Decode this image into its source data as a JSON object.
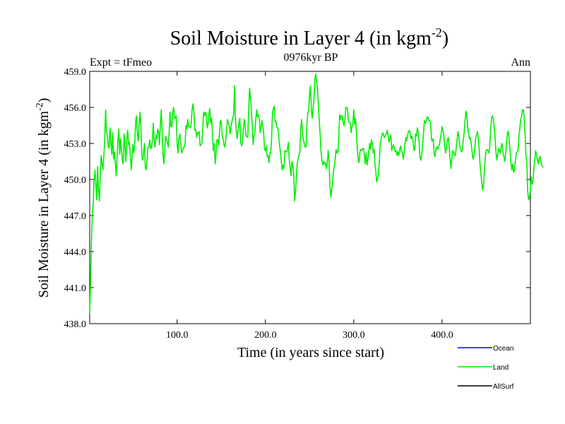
{
  "chart_data": {
    "type": "line",
    "title": "Soil Moisture in Layer 4 (in kgm",
    "title_sup": "-2",
    "title_close": ")",
    "subtitle_left": "Expt = tFmeo",
    "subtitle_center": "0976kyr BP",
    "subtitle_right": "Ann",
    "xlabel": "Time (in years since start)",
    "ylabel": "Soil Moisture in Layer 4 (in kgm",
    "ylabel_sup": "-2",
    "ylabel_close": ")",
    "xlim": [
      1,
      500
    ],
    "ylim": [
      438.0,
      459.0
    ],
    "x_ticks": [
      100,
      200,
      300,
      400
    ],
    "x_tick_labels": [
      "100.0",
      "200.0",
      "300.0",
      "400.0"
    ],
    "y_ticks": [
      438,
      441,
      444,
      447,
      450,
      453,
      456,
      459
    ],
    "y_tick_labels": [
      "438.0",
      "441.0",
      "444.0",
      "447.0",
      "450.0",
      "453.0",
      "456.0",
      "459.0"
    ],
    "legend": [
      {
        "name": "Ocean",
        "color": "#0000ff"
      },
      {
        "name": "Land",
        "color": "#00ee00"
      },
      {
        "name": "AllSurf",
        "color": "#000000"
      }
    ],
    "series": [
      {
        "name": "Land",
        "color": "#00ee00",
        "x_start": 1,
        "x_step": 1,
        "values": [
          438.8,
          441.5,
          444.8,
          447.2,
          448.0,
          450.0,
          450.8,
          449.5,
          448.3,
          451.1,
          449.0,
          448.2,
          450.5,
          452.0,
          451.3,
          450.8,
          451.9,
          453.3,
          455.8,
          454.0,
          453.6,
          452.8,
          452.6,
          454.3,
          453.1,
          452.1,
          453.9,
          451.7,
          452.3,
          451.4,
          450.3,
          451.8,
          453.3,
          454.2,
          452.1,
          453.4,
          452.5,
          451.6,
          451.3,
          453.8,
          452.7,
          451.5,
          453.4,
          454.1,
          452.9,
          453.1,
          452.0,
          450.8,
          451.9,
          452.9,
          452.2,
          453.1,
          454.8,
          455.3,
          453.8,
          453.2,
          454.6,
          455.6,
          454.4,
          452.0,
          451.6,
          452.3,
          453.0,
          451.0,
          450.8,
          451.7,
          452.7,
          452.7,
          453.3,
          452.6,
          452.6,
          453.3,
          454.7,
          453.2,
          452.7,
          453.7,
          453.4,
          454.2,
          454.0,
          452.9,
          454.6,
          455.8,
          454.0,
          452.1,
          451.3,
          452.5,
          453.6,
          453.4,
          453.1,
          452.7,
          454.0,
          455.6,
          454.4,
          454.4,
          455.6,
          456.0,
          455.1,
          455.1,
          455.3,
          453.0,
          452.2,
          453.4,
          453.8,
          453.1,
          452.2,
          452.5,
          452.6,
          452.7,
          452.9,
          454.5,
          454.2,
          455.0,
          454.4,
          454.4,
          454.3,
          454.7,
          455.9,
          456.3,
          455.6,
          454.1,
          454.2,
          453.5,
          453.9,
          453.8,
          454.0,
          452.8,
          452.9,
          453.0,
          454.3,
          455.6,
          455.3,
          455.6,
          455.4,
          454.3,
          454.6,
          455.5,
          455.9,
          454.7,
          455.1,
          453.8,
          452.4,
          453.0,
          451.3,
          452.1,
          453.3,
          453.3,
          452.8,
          454.0,
          454.9,
          454.8,
          453.7,
          453.4,
          452.9,
          452.7,
          453.2,
          454.1,
          455.0,
          454.7,
          454.5,
          453.8,
          454.4,
          454.8,
          455.1,
          455.4,
          457.8,
          455.1,
          454.0,
          453.4,
          454.1,
          454.7,
          455.1,
          453.1,
          452.8,
          453.1,
          454.2,
          455.0,
          454.5,
          453.6,
          453.6,
          453.5,
          455.6,
          457.6,
          456.9,
          455.7,
          454.6,
          452.9,
          453.6,
          453.9,
          454.9,
          455.8,
          455.2,
          455.4,
          455.1,
          453.9,
          454.3,
          454.9,
          454.5,
          453.8,
          452.5,
          452.4,
          452.8,
          451.9,
          452.0,
          451.4,
          452.2,
          452.2,
          453.5,
          455.6,
          455.9,
          456.1,
          454.8,
          454.8,
          454.3,
          454.3,
          453.7,
          452.8,
          452.3,
          451.4,
          450.8,
          451.2,
          450.9,
          452.4,
          452.3,
          452.3,
          452.6,
          453.1,
          451.6,
          451.0,
          450.3,
          451.5,
          451.2,
          450.4,
          448.2,
          449.0,
          450.1,
          451.4,
          451.7,
          452.0,
          452.3,
          454.3,
          455.0,
          453.7,
          453.3,
          453.0,
          452.7,
          452.7,
          454.6,
          455.6,
          455.7,
          457.2,
          457.8,
          455.8,
          455.1,
          456.0,
          456.7,
          458.4,
          458.8,
          458.0,
          457.6,
          456.1,
          454.8,
          453.7,
          452.3,
          451.6,
          451.2,
          451.5,
          451.3,
          451.4,
          450.9,
          451.4,
          452.4,
          451.6,
          449.5,
          448.5,
          449.2,
          449.7,
          450.7,
          451.1,
          451.7,
          452.5,
          452.2,
          452.3,
          453.3,
          455.4,
          455.0,
          455.3,
          455.3,
          454.7,
          454.5,
          455.0,
          456.0,
          456.0,
          455.8,
          454.8,
          454.8,
          454.7,
          453.9,
          454.4,
          454.7,
          455.8,
          454.6,
          455.1,
          454.0,
          452.6,
          451.6,
          451.4,
          452.3,
          452.5,
          452.4,
          452.6,
          452.6,
          452.0,
          451.3,
          452.2,
          451.2,
          451.7,
          452.3,
          453.0,
          452.5,
          453.3,
          453.0,
          452.2,
          452.5,
          451.3,
          450.6,
          449.8,
          450.1,
          450.4,
          451.6,
          452.9,
          453.4,
          453.7,
          453.9,
          453.6,
          453.5,
          453.7,
          453.8,
          454.1,
          453.6,
          453.1,
          453.4,
          453.7,
          452.4,
          452.7,
          452.9,
          452.6,
          452.3,
          452.4,
          452.0,
          452.3,
          452.0,
          452.5,
          452.8,
          452.3,
          452.3,
          451.7,
          452.3,
          452.9,
          453.5,
          453.2,
          453.7,
          454.0,
          454.1,
          453.8,
          453.4,
          453.6,
          453.3,
          452.5,
          452.4,
          453.8,
          453.6,
          454.3,
          454.0,
          453.1,
          451.8,
          451.6,
          452.1,
          452.9,
          453.9,
          454.9,
          454.7,
          454.8,
          455.2,
          455.2,
          454.9,
          454.9,
          454.8,
          453.3,
          453.2,
          453.4,
          452.2,
          451.9,
          452.5,
          452.7,
          452.5,
          452.8,
          452.9,
          453.4,
          453.8,
          454.4,
          454.1,
          453.6,
          452.7,
          452.2,
          452.7,
          453.3,
          453.5,
          452.9,
          451.8,
          450.9,
          451.7,
          452.4,
          452.3,
          452.0,
          452.0,
          452.6,
          453.3,
          454.0,
          453.6,
          452.8,
          452.5,
          452.3,
          452.4,
          453.3,
          453.9,
          454.9,
          455.7,
          455.3,
          454.4,
          453.8,
          453.4,
          453.5,
          452.9,
          452.3,
          451.7,
          451.9,
          452.6,
          453.4,
          453.7,
          454.0,
          453.4,
          452.5,
          451.2,
          450.5,
          449.7,
          449.1,
          449.6,
          450.8,
          451.9,
          452.4,
          452.5,
          452.4,
          452.2,
          452.8,
          454.2,
          455.1,
          455.3,
          455.0,
          454.4,
          453.5,
          452.3,
          451.6,
          452.1,
          452.6,
          452.4,
          452.2,
          452.8,
          453.0,
          452.2,
          451.9,
          451.5,
          452.2,
          452.9,
          453.9,
          454.0,
          453.3,
          452.4,
          451.3,
          450.8,
          451.3,
          450.6,
          450.8,
          451.6,
          452.2,
          452.3,
          452.4,
          453.6,
          454.2,
          455.0,
          455.2,
          455.8,
          455.8,
          455.2,
          453.7,
          452.0,
          451.3,
          449.0,
          448.3,
          448.5,
          449.3,
          450.2,
          449.6,
          450.0,
          450.9,
          451.7,
          452.4,
          452.0,
          451.6,
          451.3,
          451.8,
          451.9,
          451.4,
          451.2,
          451.0
        ]
      }
    ]
  }
}
